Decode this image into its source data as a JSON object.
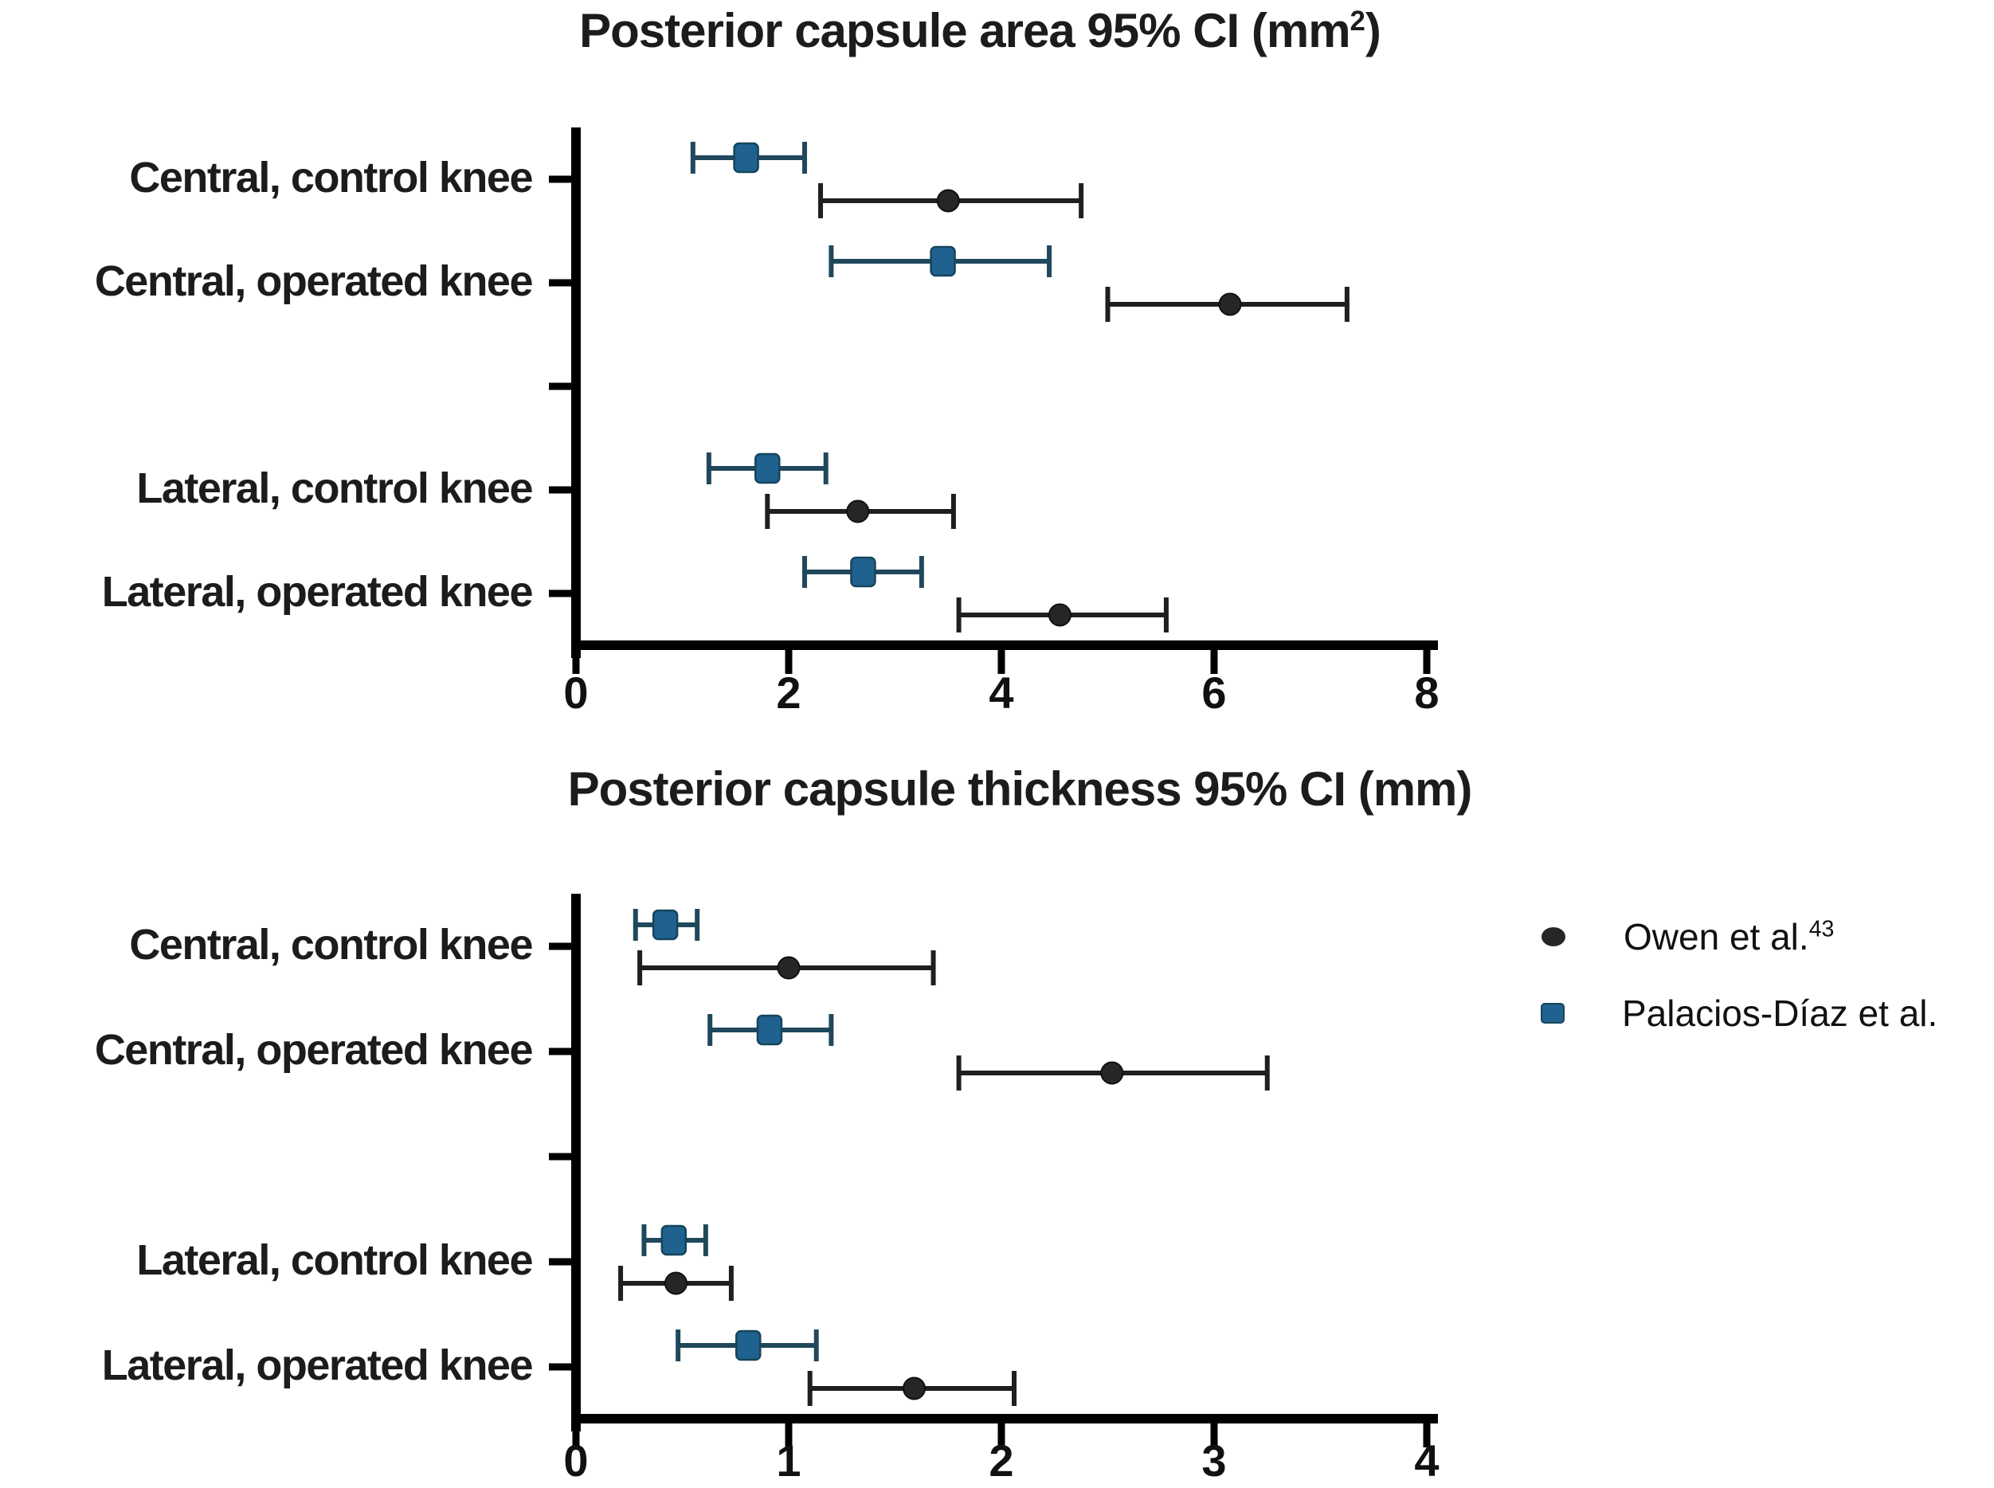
{
  "figure": {
    "background": "#ffffff",
    "axis_color": "#000000",
    "text_color": "#1c1c1c"
  },
  "legend": {
    "position": "right-middle",
    "items": [
      {
        "label": "Owen et al.",
        "sup": "43",
        "marker": "circle",
        "color": "#262626"
      },
      {
        "label": "Palacios-Díaz et al.",
        "sup": "",
        "marker": "square",
        "color": "#1f618f"
      }
    ]
  },
  "chart_data": [
    {
      "type": "scatter",
      "subtype": "forest-errorbar-horizontal",
      "title_prefix": "Posterior capsule area 95% CI (mm",
      "title_sup": "2",
      "title_suffix": ")",
      "xlabel": "",
      "ylabel": "",
      "xlim": [
        0,
        8
      ],
      "xticks": [
        0,
        2,
        4,
        6,
        8
      ],
      "grid": false,
      "categories": [
        "Central, control knee",
        "Central, operated knee",
        "",
        "Lateral, control knee",
        "Lateral, operated knee"
      ],
      "series": [
        {
          "name": "Palacios-Díaz et al.",
          "marker": "square",
          "marker_color": "#1f618f",
          "line_color": "#20485c",
          "values": [
            {
              "mean": 1.6,
              "lo": 1.1,
              "hi": 2.15
            },
            {
              "mean": 3.45,
              "lo": 2.4,
              "hi": 4.45
            },
            null,
            {
              "mean": 1.8,
              "lo": 1.25,
              "hi": 2.35
            },
            {
              "mean": 2.7,
              "lo": 2.15,
              "hi": 3.25
            }
          ]
        },
        {
          "name": "Owen et al.",
          "marker": "circle",
          "marker_color": "#262626",
          "line_color": "#1f1f1f",
          "values": [
            {
              "mean": 3.5,
              "lo": 2.3,
              "hi": 4.75
            },
            {
              "mean": 6.15,
              "lo": 5.0,
              "hi": 7.25
            },
            null,
            {
              "mean": 2.65,
              "lo": 1.8,
              "hi": 3.55
            },
            {
              "mean": 4.55,
              "lo": 3.6,
              "hi": 5.55
            }
          ]
        }
      ]
    },
    {
      "type": "scatter",
      "subtype": "forest-errorbar-horizontal",
      "title_prefix": "Posterior capsule thickness 95% CI (mm)",
      "title_sup": "",
      "title_suffix": "",
      "xlabel": "",
      "ylabel": "",
      "xlim": [
        0,
        4
      ],
      "xticks": [
        0,
        1,
        2,
        3,
        4
      ],
      "grid": false,
      "categories": [
        "Central, control knee",
        "Central, operated knee",
        "",
        "Lateral, control knee",
        "Lateral, operated knee"
      ],
      "series": [
        {
          "name": "Palacios-Díaz et al.",
          "marker": "square",
          "marker_color": "#1f618f",
          "line_color": "#20485c",
          "values": [
            {
              "mean": 0.42,
              "lo": 0.28,
              "hi": 0.57
            },
            {
              "mean": 0.91,
              "lo": 0.63,
              "hi": 1.2
            },
            null,
            {
              "mean": 0.46,
              "lo": 0.32,
              "hi": 0.61
            },
            {
              "mean": 0.81,
              "lo": 0.48,
              "hi": 1.13
            }
          ]
        },
        {
          "name": "Owen et al.",
          "marker": "circle",
          "marker_color": "#262626",
          "line_color": "#1f1f1f",
          "values": [
            {
              "mean": 1.0,
              "lo": 0.3,
              "hi": 1.68
            },
            {
              "mean": 2.52,
              "lo": 1.8,
              "hi": 3.25
            },
            null,
            {
              "mean": 0.47,
              "lo": 0.21,
              "hi": 0.73
            },
            {
              "mean": 1.59,
              "lo": 1.1,
              "hi": 2.06
            }
          ]
        }
      ]
    }
  ]
}
